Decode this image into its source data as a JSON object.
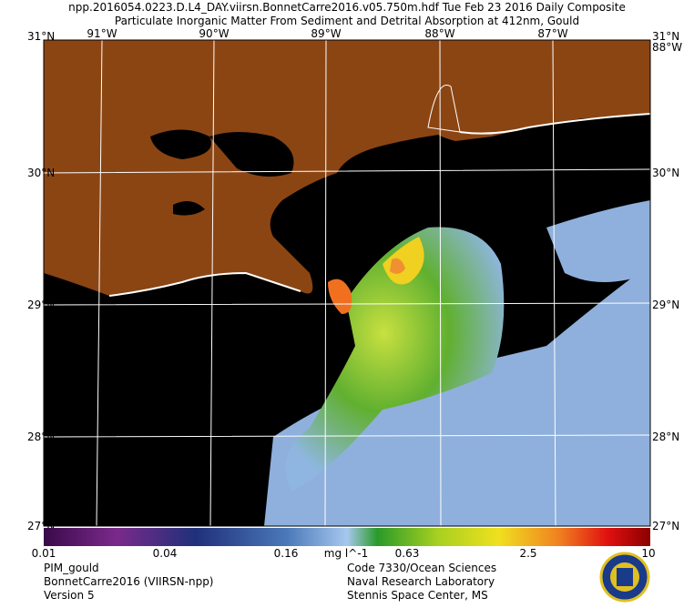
{
  "header": {
    "line1": "npp.2016054.0223.D.L4_DAY.viirsn.BonnetCarre2016.v05.750m.hdf     Tue Feb 23 2016 Daily Composite",
    "line2": "Particulate Inorganic Matter From Sediment and Detrital Absorption at 412nm, Gould"
  },
  "map": {
    "lon_labels": [
      "91°W",
      "90°W",
      "89°W",
      "88°W",
      "87°W"
    ],
    "lat_labels": [
      "31°N",
      "30°N",
      "29°N",
      "28°N",
      "27°N"
    ],
    "corner_label": "88°W"
  },
  "colorbar": {
    "ticks": [
      "0.01",
      "0.04",
      "0.16",
      "0.63",
      "2.5",
      "10"
    ],
    "unit": "mg l^-1"
  },
  "footer": {
    "left": [
      "PIM_gould",
      "BonnetCarre2016 (VIIRSN-npp)",
      "Version 5"
    ],
    "right": [
      "Code 7330/Ocean Sciences",
      "Naval Research Laboratory",
      "Stennis Space Center, MS"
    ]
  }
}
